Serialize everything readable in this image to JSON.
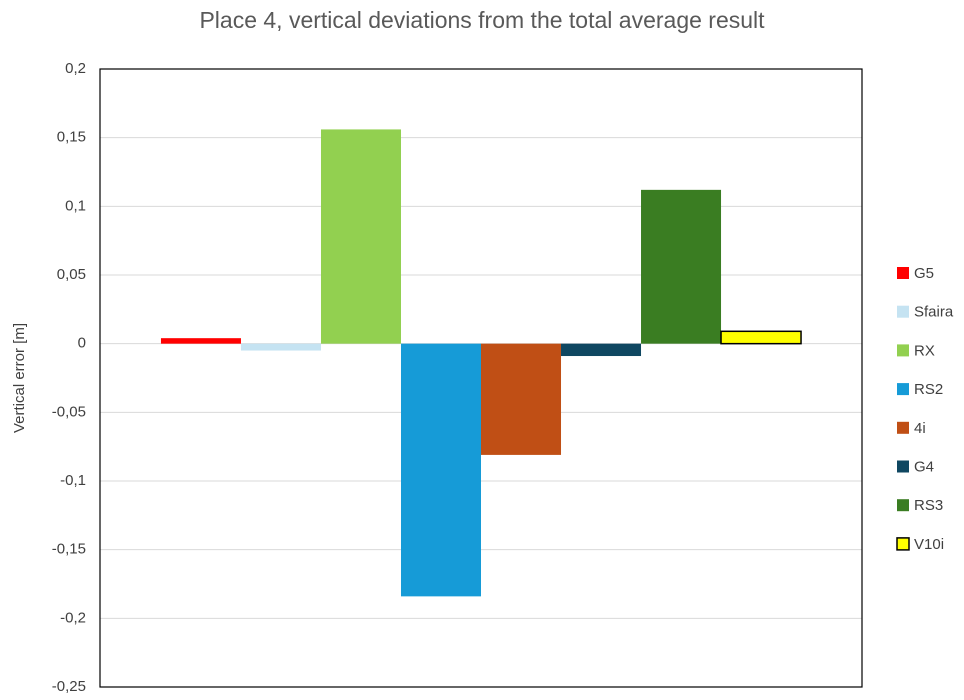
{
  "chart_data": {
    "type": "bar",
    "title": "Place 4, vertical deviations from the total average result",
    "y_label": "Vertical error [m]",
    "categories": [
      null
    ],
    "series": [
      {
        "name": "G5",
        "color": "#ff0000",
        "values": [
          0.004
        ]
      },
      {
        "name": "Sfaira",
        "color": "#c5e3f2",
        "values": [
          -0.005
        ]
      },
      {
        "name": "RX",
        "color": "#92d050",
        "values": [
          0.156
        ]
      },
      {
        "name": "RS2",
        "color": "#169bd7",
        "values": [
          -0.184
        ]
      },
      {
        "name": "4i",
        "color": "#c04f15",
        "values": [
          -0.081
        ]
      },
      {
        "name": "G4",
        "color": "#0f4761",
        "values": [
          -0.009
        ]
      },
      {
        "name": "RS3",
        "color": "#3a7d22",
        "values": [
          0.112
        ]
      },
      {
        "name": "V10i",
        "color": "#ffff00",
        "edgecolor": "#000000",
        "values": [
          0.009
        ]
      }
    ],
    "ylim": [
      -0.25,
      0.2
    ],
    "yticks": [
      {
        "value": -0.25,
        "label": "-0,25"
      },
      {
        "value": -0.2,
        "label": "-0,2"
      },
      {
        "value": -0.15,
        "label": "-0,15"
      },
      {
        "value": -0.1,
        "label": "-0,1"
      },
      {
        "value": -0.05,
        "label": "-0,05"
      },
      0,
      {
        "value": 0.05,
        "label": "0,05"
      },
      {
        "value": 0.1,
        "label": "0,1"
      },
      {
        "value": 0.15,
        "label": "0,15"
      },
      {
        "value": 0.2,
        "label": "0,2"
      }
    ],
    "grid": true,
    "legend": "right"
  }
}
